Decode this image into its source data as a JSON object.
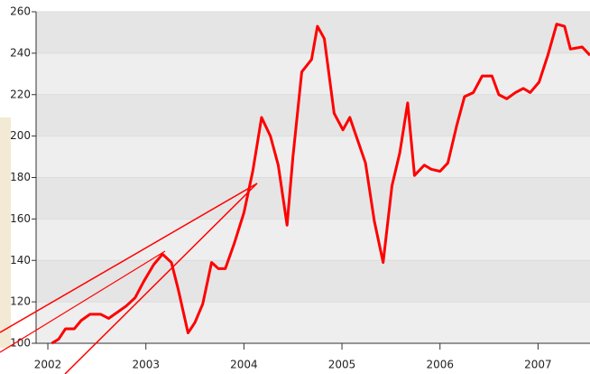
{
  "chart_data": {
    "type": "line",
    "x": [
      2002.04,
      2002.11,
      2002.18,
      2002.27,
      2002.34,
      2002.43,
      2002.54,
      2002.62,
      2002.71,
      2002.8,
      2002.89,
      2002.98,
      2003.08,
      2003.17,
      2003.26,
      2003.33,
      2003.43,
      2003.5,
      2003.58,
      2003.67,
      2003.74,
      2003.81,
      2003.9,
      2004.0,
      2004.09,
      2004.18,
      2004.27,
      2004.35,
      2004.44,
      2004.5,
      2004.59,
      2004.69,
      2004.75,
      2004.82,
      2004.92,
      2005.01,
      2005.08,
      2005.16,
      2005.24,
      2005.33,
      2005.42,
      2005.51,
      2005.59,
      2005.67,
      2005.74,
      2005.84,
      2005.91,
      2006.0,
      2006.08,
      2006.17,
      2006.25,
      2006.34,
      2006.43,
      2006.53,
      2006.6,
      2006.68,
      2006.77,
      2006.85,
      2006.92,
      2007.01,
      2007.1,
      2007.19,
      2007.27,
      2007.33,
      2007.45,
      2007.53
    ],
    "series": [
      {
        "color": "#ff0000",
        "values": [
          100,
          102,
          107,
          107,
          111,
          114,
          114,
          112,
          115,
          118,
          122,
          130,
          138,
          143,
          139,
          126,
          105,
          110,
          119,
          139,
          136,
          136,
          148,
          163,
          183,
          209,
          200,
          186,
          157,
          190,
          231,
          237,
          253,
          247,
          211,
          203,
          209,
          198,
          187,
          159,
          139,
          176,
          192,
          216,
          181,
          186,
          184,
          183,
          187,
          205,
          219,
          221,
          229,
          229,
          220,
          218,
          221,
          223,
          221,
          226,
          239,
          254,
          253,
          242,
          243,
          239
        ]
      }
    ],
    "xlim": [
      2001.88,
      2007.53
    ],
    "xticks": [
      2002,
      2003,
      2004,
      2005,
      2006,
      2007
    ],
    "ylim": [
      100,
      260
    ],
    "yticks": [
      100,
      120,
      140,
      160,
      180,
      200,
      220,
      240,
      260
    ],
    "grid": true
  }
}
